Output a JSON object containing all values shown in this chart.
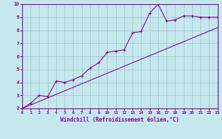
{
  "title": "",
  "xlabel": "Windchill (Refroidissement éolien,°C)",
  "ylabel": "",
  "xlim": [
    0,
    23
  ],
  "ylim": [
    2,
    10
  ],
  "xticks": [
    0,
    1,
    2,
    3,
    4,
    5,
    6,
    7,
    8,
    9,
    10,
    11,
    12,
    13,
    14,
    15,
    16,
    17,
    18,
    19,
    20,
    21,
    22,
    23
  ],
  "yticks": [
    2,
    3,
    4,
    5,
    6,
    7,
    8,
    9,
    10
  ],
  "background_color": "#c5e8ee",
  "grid_color": "#a0c8cc",
  "line_color": "#880088",
  "data_x": [
    0,
    1,
    2,
    3,
    4,
    5,
    6,
    7,
    8,
    9,
    10,
    11,
    12,
    13,
    14,
    15,
    16,
    17,
    18,
    19,
    20,
    21,
    22,
    23
  ],
  "data_y": [
    2.0,
    2.4,
    3.0,
    2.9,
    4.1,
    4.0,
    4.2,
    4.5,
    5.1,
    5.5,
    6.3,
    6.4,
    6.5,
    7.8,
    7.9,
    9.3,
    10.0,
    8.7,
    8.8,
    9.1,
    9.1,
    9.0,
    9.0,
    9.0
  ],
  "line2_x": [
    0,
    23
  ],
  "line2_y": [
    2.0,
    8.2
  ]
}
